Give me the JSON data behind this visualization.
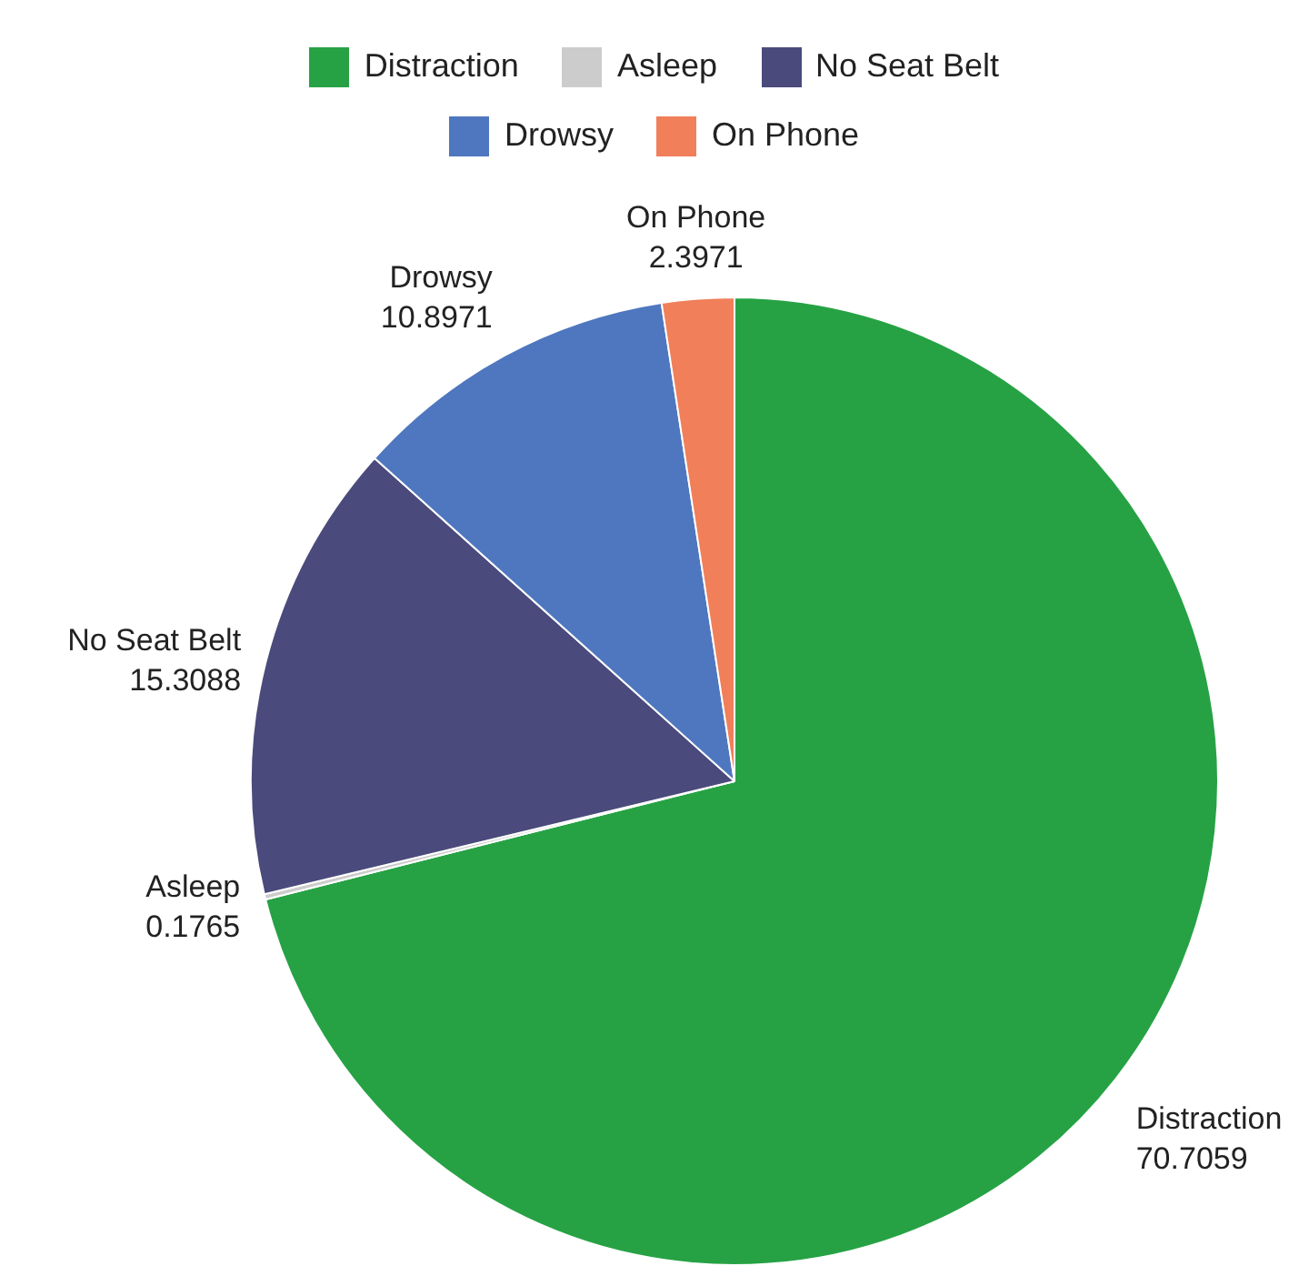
{
  "chart_data": {
    "type": "pie",
    "categories": [
      "Distraction",
      "Asleep",
      "No Seat Belt",
      "Drowsy",
      "On Phone"
    ],
    "values": [
      70.7059,
      0.1765,
      15.3088,
      10.8971,
      2.3971
    ],
    "colors": [
      "#26a244",
      "#cccccc",
      "#4a4a7c",
      "#4f77bf",
      "#f07f5a"
    ],
    "data_labels": true,
    "legend": "top"
  }
}
